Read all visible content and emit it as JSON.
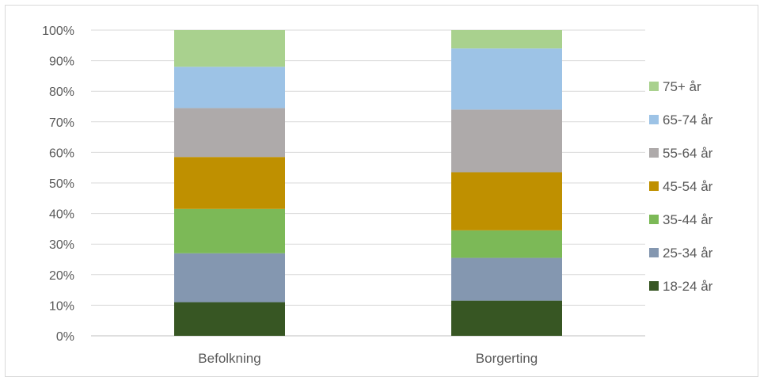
{
  "chart_data": {
    "type": "bar",
    "stacked": true,
    "categories": [
      "Befolkning",
      "Borgerting"
    ],
    "y_ticks": [
      "0%",
      "10%",
      "20%",
      "30%",
      "40%",
      "50%",
      "60%",
      "70%",
      "80%",
      "90%",
      "100%"
    ],
    "ylim": [
      0,
      100
    ],
    "grid": true,
    "legend_position": "right",
    "series": [
      {
        "name": "18-24 år",
        "color": "#375623",
        "values": [
          11,
          11.5
        ]
      },
      {
        "name": "25-34 år",
        "color": "#8497b0",
        "values": [
          16,
          14
        ]
      },
      {
        "name": "35-44 år",
        "color": "#7cb957",
        "values": [
          14.5,
          9
        ]
      },
      {
        "name": "45-54 år",
        "color": "#bf9000",
        "values": [
          17,
          19
        ]
      },
      {
        "name": "55-64 år",
        "color": "#aeaaaa",
        "values": [
          16,
          20.5
        ]
      },
      {
        "name": "65-74 år",
        "color": "#9dc3e6",
        "values": [
          13.5,
          20
        ]
      },
      {
        "name": "75+ år",
        "color": "#a9d18e",
        "values": [
          12,
          6
        ]
      }
    ]
  }
}
